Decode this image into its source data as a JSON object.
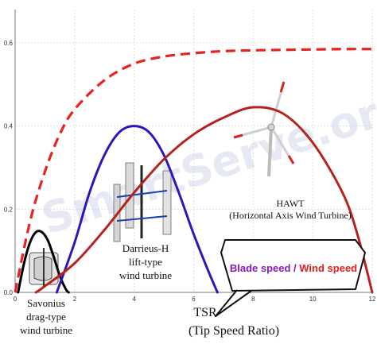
{
  "chart_data": {
    "type": "line",
    "title": "",
    "xlabel": "TSR",
    "xlabel_sub": "(Tip Speed Ratio)",
    "ylabel": "",
    "xlim": [
      0,
      12
    ],
    "ylim": [
      0,
      0.68
    ],
    "x_ticks": [
      "0",
      "2",
      "4",
      "6",
      "8",
      "10",
      "12"
    ],
    "y_ticks": [
      "0.0",
      "0.2",
      "0.4",
      "0.6"
    ],
    "grid": true,
    "series": [
      {
        "key": "betz",
        "style": "dashed",
        "color": "#e8231f",
        "x": [
          0,
          0.5,
          1,
          1.5,
          2,
          3,
          4,
          5,
          6,
          7,
          8,
          9,
          10,
          11,
          12
        ],
        "y": [
          0.0,
          0.17,
          0.29,
          0.38,
          0.44,
          0.51,
          0.55,
          0.567,
          0.575,
          0.58,
          0.582,
          0.583,
          0.584,
          0.585,
          0.585
        ]
      },
      {
        "key": "savonius",
        "color": "#000000",
        "x": [
          0.1,
          0.3,
          0.5,
          0.7,
          0.9,
          1.1,
          1.3,
          1.5,
          1.7,
          1.8
        ],
        "y": [
          0.0,
          0.07,
          0.12,
          0.145,
          0.145,
          0.125,
          0.085,
          0.04,
          0.008,
          0.0
        ]
      },
      {
        "key": "darrieus",
        "color": "#2e17b8",
        "x": [
          1.4,
          2,
          2.5,
          3,
          3.5,
          4,
          4.5,
          5,
          5.5,
          6,
          6.5,
          6.8
        ],
        "y": [
          0.0,
          0.12,
          0.24,
          0.33,
          0.385,
          0.4,
          0.385,
          0.33,
          0.24,
          0.14,
          0.05,
          0.0
        ]
      },
      {
        "key": "hawt",
        "color": "#b5231c",
        "x": [
          0.7,
          1,
          2,
          3,
          4,
          5,
          6,
          7,
          8,
          9,
          10,
          11,
          11.5,
          12
        ],
        "y": [
          0.0,
          0.015,
          0.07,
          0.15,
          0.24,
          0.32,
          0.38,
          0.42,
          0.445,
          0.43,
          0.36,
          0.24,
          0.14,
          0.0
        ]
      }
    ],
    "annotations": {
      "savonius": [
        "Savonius",
        "drag-type",
        "wind turbine"
      ],
      "darrieus": [
        "Darrieus-H",
        "lift-type",
        "wind turbine"
      ],
      "hawt": [
        "HAWT",
        "(Horizontal Axis Wind Turbine)"
      ],
      "callout_part1": "Blade speed / ",
      "callout_part2": "Wind speed",
      "watermark": "SmartServe.org"
    },
    "colors": {
      "callout_part1": "#8a17b8",
      "callout_part2": "#e0201a"
    }
  }
}
